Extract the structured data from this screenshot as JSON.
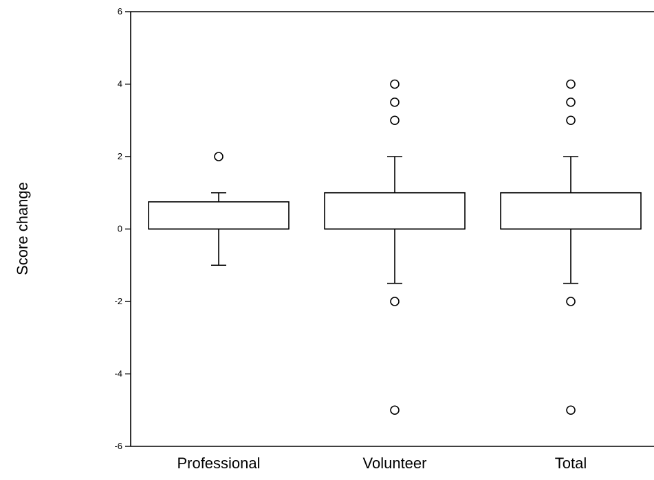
{
  "chart_data": {
    "type": "boxplot",
    "title": "",
    "xlabel": "",
    "ylabel": "Score change",
    "ylim": [
      -6,
      6
    ],
    "yticks": [
      6,
      4,
      2,
      0,
      -2,
      -4,
      -6
    ],
    "ytick_labels": [
      "6",
      "4",
      "2",
      "0",
      "-2",
      "-4",
      "-6"
    ],
    "grid": false,
    "legend": "none",
    "colors": {
      "box_fill": "#ffffff",
      "stroke": "#000000"
    },
    "categories": [
      "Professional",
      "Volunteer",
      "Total"
    ],
    "boxes": [
      {
        "category": "Professional",
        "whisker_low": -1,
        "q1": 0,
        "median": 0,
        "q3": 0.75,
        "whisker_high": 1,
        "outliers": [
          2
        ]
      },
      {
        "category": "Volunteer",
        "whisker_low": -1.5,
        "q1": 0,
        "median": 0,
        "q3": 1,
        "whisker_high": 2,
        "outliers": [
          4,
          3.5,
          3,
          -2,
          -5
        ]
      },
      {
        "category": "Total",
        "whisker_low": -1.5,
        "q1": 0,
        "median": 0,
        "q3": 1,
        "whisker_high": 2,
        "outliers": [
          4,
          3.5,
          3,
          -2,
          -5
        ]
      }
    ]
  }
}
